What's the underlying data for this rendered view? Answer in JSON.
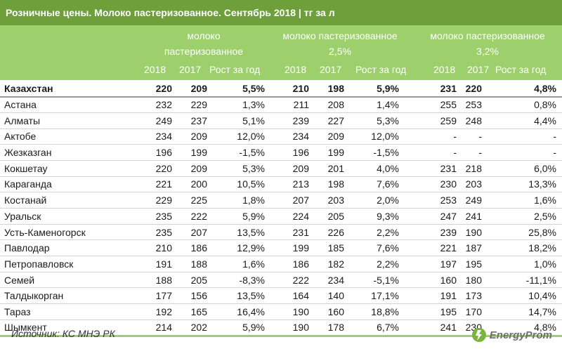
{
  "title": "Розничные цены. Молоко пастеризованное. Сентябрь 2018 | тг за л",
  "groups": [
    {
      "line1": "молоко",
      "line2": "пастеризованное"
    },
    {
      "line1": "молоко пастеризованное",
      "line2": "2,5%"
    },
    {
      "line1": "молоко пастеризованное",
      "line2": "3,2%"
    }
  ],
  "subheaders": {
    "y2018": "2018",
    "y2017": "2017",
    "growth": "Рост за год"
  },
  "rows": [
    {
      "city": "Казахстан",
      "vals": [
        "220",
        "209",
        "5,5%",
        "210",
        "198",
        "5,9%",
        "231",
        "220",
        "4,8%"
      ]
    },
    {
      "city": "Астана",
      "vals": [
        "232",
        "229",
        "1,3%",
        "211",
        "208",
        "1,4%",
        "255",
        "253",
        "0,8%"
      ]
    },
    {
      "city": "Алматы",
      "vals": [
        "249",
        "237",
        "5,1%",
        "239",
        "227",
        "5,3%",
        "259",
        "248",
        "4,4%"
      ]
    },
    {
      "city": "Актобе",
      "vals": [
        "234",
        "209",
        "12,0%",
        "234",
        "209",
        "12,0%",
        "-",
        "-",
        "-"
      ]
    },
    {
      "city": "Жезказган",
      "vals": [
        "196",
        "199",
        "-1,5%",
        "196",
        "199",
        "-1,5%",
        "-",
        "-",
        "-"
      ]
    },
    {
      "city": "Кокшетау",
      "vals": [
        "220",
        "209",
        "5,3%",
        "209",
        "201",
        "4,0%",
        "231",
        "218",
        "6,0%"
      ]
    },
    {
      "city": "Караганда",
      "vals": [
        "221",
        "200",
        "10,5%",
        "213",
        "198",
        "7,6%",
        "230",
        "203",
        "13,3%"
      ]
    },
    {
      "city": "Костанай",
      "vals": [
        "229",
        "225",
        "1,8%",
        "207",
        "203",
        "2,0%",
        "253",
        "249",
        "1,6%"
      ]
    },
    {
      "city": "Уральск",
      "vals": [
        "235",
        "222",
        "5,9%",
        "224",
        "205",
        "9,3%",
        "247",
        "241",
        "2,5%"
      ]
    },
    {
      "city": "Усть-Каменогорск",
      "vals": [
        "235",
        "207",
        "13,5%",
        "231",
        "226",
        "2,2%",
        "239",
        "190",
        "25,8%"
      ]
    },
    {
      "city": "Павлодар",
      "vals": [
        "210",
        "186",
        "12,9%",
        "199",
        "185",
        "7,6%",
        "221",
        "187",
        "18,2%"
      ]
    },
    {
      "city": "Петропавловск",
      "vals": [
        "191",
        "188",
        "1,6%",
        "186",
        "182",
        "2,2%",
        "197",
        "195",
        "1,0%"
      ]
    },
    {
      "city": "Семей",
      "vals": [
        "188",
        "205",
        "-8,3%",
        "222",
        "234",
        "-5,1%",
        "160",
        "180",
        "-11,1%"
      ]
    },
    {
      "city": "Талдыкорган",
      "vals": [
        "177",
        "156",
        "13,5%",
        "164",
        "140",
        "17,1%",
        "191",
        "173",
        "10,4%"
      ]
    },
    {
      "city": "Тараз",
      "vals": [
        "192",
        "165",
        "16,4%",
        "190",
        "160",
        "18,8%",
        "195",
        "170",
        "14,7%"
      ]
    },
    {
      "city": "Шымкент",
      "vals": [
        "214",
        "202",
        "5,9%",
        "190",
        "178",
        "6,7%",
        "241",
        "230",
        "4,8%"
      ]
    }
  ],
  "source": "Источник: КС МНЭ РК",
  "logo_text": "EnergyProm",
  "colors": {
    "title_bg": "#6e9f3a",
    "header_bg": "#9dd06d",
    "text": "#1a1a1a"
  }
}
